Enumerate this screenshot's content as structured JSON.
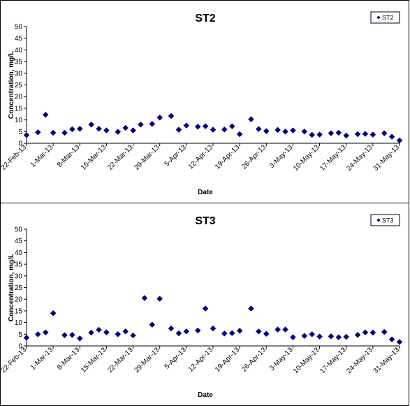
{
  "chart_data": [
    {
      "type": "scatter",
      "title": "ST2",
      "xlabel": "Date",
      "ylabel": "Concentration, mg/L",
      "ylim": [
        0,
        50
      ],
      "yticks": [
        "0",
        "5",
        "10",
        "15",
        "20",
        "25",
        "30",
        "35",
        "40",
        "45",
        "50"
      ],
      "xlim": [
        "2013-02-22",
        "2013-05-31"
      ],
      "xticks": [
        "22-Feb-13",
        "1-Mar-13",
        "8-Mar-13",
        "15-Mar-13",
        "22-Mar-13",
        "29-Mar-13",
        "5-Apr-13",
        "12-Apr-13",
        "19-Apr-13",
        "26-Apr-13",
        "3-May-13",
        "10-May-13",
        "17-May-13",
        "24-May-13",
        "31-May-13"
      ],
      "grid": false,
      "legend": "top-right",
      "marker_color": "#000080",
      "series": [
        {
          "name": "ST2",
          "x": [
            "2013-02-22",
            "2013-02-25",
            "2013-02-27",
            "2013-03-01",
            "2013-03-04",
            "2013-03-06",
            "2013-03-08",
            "2013-03-11",
            "2013-03-13",
            "2013-03-15",
            "2013-03-18",
            "2013-03-20",
            "2013-03-22",
            "2013-03-24",
            "2013-03-27",
            "2013-03-29",
            "2013-04-01",
            "2013-04-03",
            "2013-04-05",
            "2013-04-08",
            "2013-04-10",
            "2013-04-12",
            "2013-04-15",
            "2013-04-17",
            "2013-04-19",
            "2013-04-22",
            "2013-04-24",
            "2013-04-26",
            "2013-04-29",
            "2013-05-01",
            "2013-05-03",
            "2013-05-06",
            "2013-05-08",
            "2013-05-10",
            "2013-05-13",
            "2013-05-15",
            "2013-05-17",
            "2013-05-20",
            "2013-05-22",
            "2013-05-24",
            "2013-05-27",
            "2013-05-29",
            "2013-05-31"
          ],
          "y": [
            3.5,
            4.7,
            12.2,
            4.5,
            4.5,
            6.0,
            6.2,
            8.0,
            6.2,
            5.5,
            4.9,
            6.6,
            5.5,
            8.0,
            8.3,
            11.0,
            11.7,
            5.8,
            7.6,
            7.1,
            7.3,
            5.8,
            5.9,
            7.3,
            3.9,
            10.3,
            6.1,
            5.2,
            5.7,
            5.0,
            5.5,
            5.0,
            3.6,
            3.7,
            4.3,
            4.5,
            3.3,
            3.9,
            4.0,
            3.7,
            4.3,
            2.8,
            1.2
          ]
        }
      ]
    },
    {
      "type": "scatter",
      "title": "ST3",
      "xlabel": "Date",
      "ylabel": "Concentration, mg/L",
      "ylim": [
        0,
        50
      ],
      "yticks": [
        "0",
        "5",
        "10",
        "15",
        "20",
        "25",
        "30",
        "35",
        "40",
        "45",
        "50"
      ],
      "xlim": [
        "2013-02-22",
        "2013-05-31"
      ],
      "xticks": [
        "22-Feb-13",
        "1-Mar-13",
        "8-Mar-13",
        "15-Mar-13",
        "22-Mar-13",
        "29-Mar-13",
        "5-Apr-13",
        "12-Apr-13",
        "19-Apr-13",
        "26-Apr-13",
        "3-May-13",
        "10-May-13",
        "17-May-13",
        "24-May-13",
        "31-May-13"
      ],
      "grid": false,
      "legend": "top-right",
      "marker_color": "#000080",
      "series": [
        {
          "name": "ST3",
          "x": [
            "2013-02-22",
            "2013-02-25",
            "2013-02-27",
            "2013-03-01",
            "2013-03-04",
            "2013-03-06",
            "2013-03-08",
            "2013-03-11",
            "2013-03-13",
            "2013-03-15",
            "2013-03-18",
            "2013-03-20",
            "2013-03-22",
            "2013-03-25",
            "2013-03-27",
            "2013-03-29",
            "2013-04-01",
            "2013-04-03",
            "2013-04-05",
            "2013-04-08",
            "2013-04-10",
            "2013-04-12",
            "2013-04-15",
            "2013-04-17",
            "2013-04-19",
            "2013-04-22",
            "2013-04-24",
            "2013-04-26",
            "2013-04-29",
            "2013-05-01",
            "2013-05-03",
            "2013-05-06",
            "2013-05-08",
            "2013-05-10",
            "2013-05-13",
            "2013-05-15",
            "2013-05-17",
            "2013-05-20",
            "2013-05-22",
            "2013-05-24",
            "2013-05-27",
            "2013-05-29",
            "2013-05-31"
          ],
          "y": [
            3.5,
            5.0,
            5.8,
            14.0,
            4.6,
            4.7,
            3.2,
            5.7,
            6.9,
            5.8,
            5.0,
            6.2,
            4.5,
            20.5,
            9.1,
            20.2,
            7.5,
            5.4,
            6.2,
            6.6,
            16.0,
            7.5,
            5.3,
            5.5,
            6.5,
            16.0,
            6.2,
            5.2,
            7.0,
            7.0,
            3.7,
            4.3,
            5.0,
            4.0,
            4.1,
            3.7,
            3.9,
            4.7,
            5.8,
            5.7,
            6.0,
            2.8,
            1.7
          ]
        }
      ]
    }
  ]
}
